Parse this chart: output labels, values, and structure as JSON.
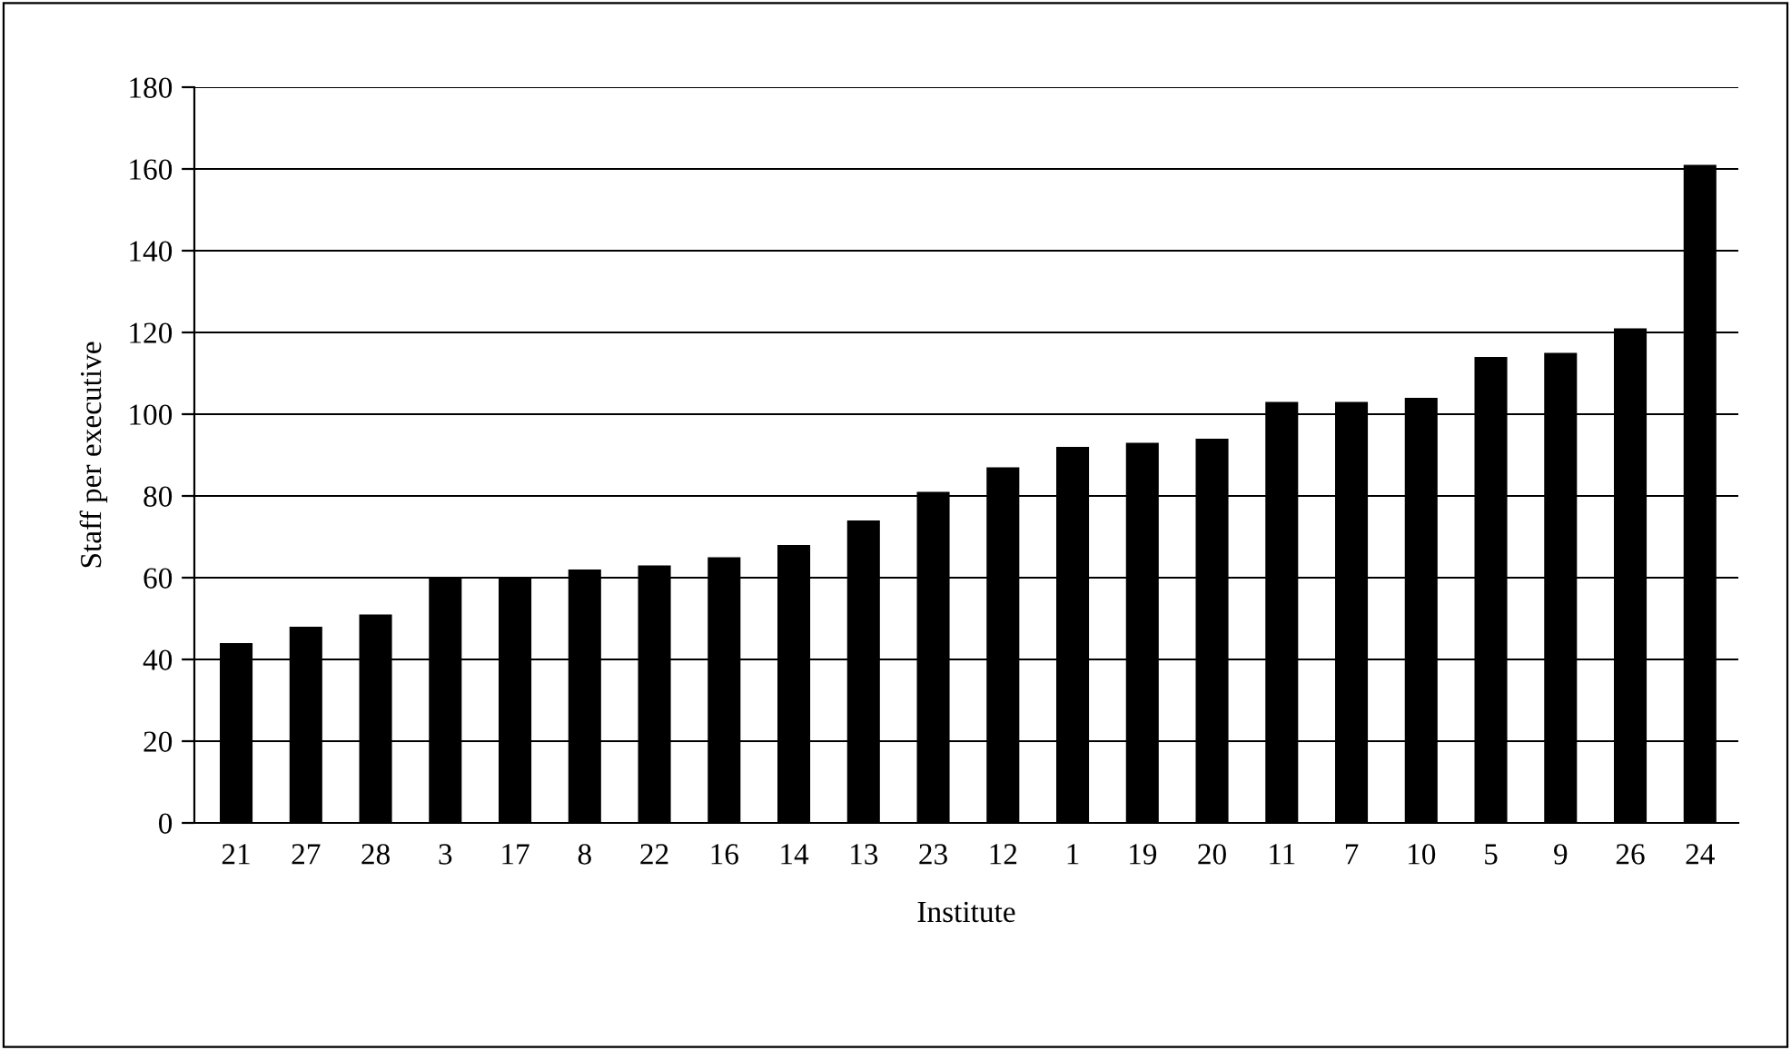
{
  "chart_data": {
    "type": "bar",
    "xlabel": "Institute",
    "ylabel": "Staff per executive",
    "categories": [
      "21",
      "27",
      "28",
      "3",
      "17",
      "8",
      "22",
      "16",
      "14",
      "13",
      "23",
      "12",
      "1",
      "19",
      "20",
      "11",
      "7",
      "10",
      "5",
      "9",
      "26",
      "24"
    ],
    "values": [
      44,
      48,
      51,
      60,
      60,
      62,
      63,
      65,
      68,
      74,
      81,
      87,
      92,
      93,
      94,
      103,
      103,
      104,
      114,
      115,
      121,
      161
    ],
    "color": "#000000",
    "ylim": [
      0,
      180
    ],
    "yticks": [
      0,
      20,
      40,
      60,
      80,
      100,
      120,
      140,
      160,
      180
    ],
    "grid": "y"
  }
}
